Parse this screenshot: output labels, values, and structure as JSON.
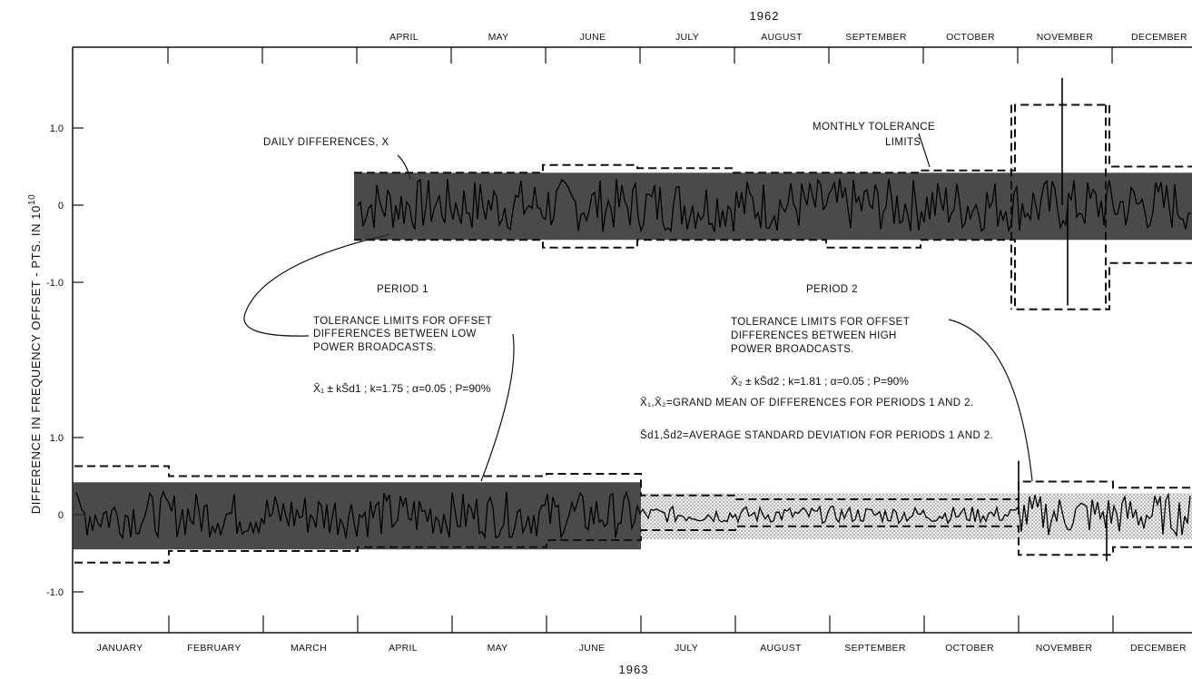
{
  "chart_data": {
    "type": "line",
    "ylabel": "DIFFERENCE IN FREQUENCY OFFSET - PTS. IN 10",
    "ylabel_exponent": "10",
    "top_year": "1962",
    "bottom_year": "1963",
    "top_months": [
      "APRIL",
      "MAY",
      "JUNE",
      "JULY",
      "AUGUST",
      "SEPTEMBER",
      "OCTOBER",
      "NOVEMBER",
      "DECEMBER"
    ],
    "bottom_months": [
      "JANUARY",
      "FEBRUARY",
      "MARCH",
      "APRIL",
      "MAY",
      "JUNE",
      "JULY",
      "AUGUST",
      "SEPTEMBER",
      "OCTOBER",
      "NOVEMBER",
      "DECEMBER"
    ],
    "y_ticks_upper": [
      "1.0",
      "0",
      "-1.0"
    ],
    "y_ticks_lower": [
      "1.0",
      "0",
      "-1.0"
    ],
    "y_tick_values": [
      1.0,
      0,
      -1.0
    ],
    "ylim": [
      -1.5,
      1.7
    ],
    "grid": false,
    "panels": [
      {
        "name": "1962",
        "start_month": 4,
        "band": {
          "low": -0.45,
          "high": 0.42
        },
        "tolerance_limits": [
          {
            "month": 4,
            "upper": 0.42,
            "lower": -0.45
          },
          {
            "month": 5,
            "upper": 0.42,
            "lower": -0.45
          },
          {
            "month": 6,
            "upper": 0.52,
            "lower": -0.55
          },
          {
            "month": 7,
            "upper": 0.48,
            "lower": -0.45
          },
          {
            "month": 8,
            "upper": 0.42,
            "lower": -0.45
          },
          {
            "month": 9,
            "upper": 0.42,
            "lower": -0.55
          },
          {
            "month": 10,
            "upper": 0.45,
            "lower": -0.45
          },
          {
            "month": 11,
            "upper": 1.3,
            "lower": -1.35
          },
          {
            "month": 12,
            "upper": 0.5,
            "lower": -0.75
          }
        ],
        "spikes": [
          {
            "x": 11.6,
            "value": 1.65
          },
          {
            "x": 11.55,
            "value": -1.3
          }
        ]
      },
      {
        "name": "1963",
        "start_month": 1,
        "band_period1": {
          "low": -0.45,
          "high": 0.42,
          "months": [
            1,
            6
          ]
        },
        "band_period2": {
          "low": -0.32,
          "high": 0.28,
          "months": [
            7,
            12
          ]
        },
        "tolerance_limits": [
          {
            "month": 1,
            "upper": 0.63,
            "lower": -0.62
          },
          {
            "month": 2,
            "upper": 0.5,
            "lower": -0.47
          },
          {
            "month": 3,
            "upper": 0.5,
            "lower": -0.47
          },
          {
            "month": 4,
            "upper": 0.5,
            "lower": -0.42
          },
          {
            "month": 5,
            "upper": 0.5,
            "lower": -0.42
          },
          {
            "month": 6,
            "upper": 0.53,
            "lower": -0.33
          },
          {
            "month": 7,
            "upper": 0.25,
            "lower": -0.2
          },
          {
            "month": 8,
            "upper": 0.2,
            "lower": -0.15
          },
          {
            "month": 9,
            "upper": 0.2,
            "lower": -0.15
          },
          {
            "month": 10,
            "upper": 0.2,
            "lower": -0.15
          },
          {
            "month": 11,
            "upper": 0.43,
            "lower": -0.52
          },
          {
            "month": 12,
            "upper": 0.35,
            "lower": -0.42
          }
        ],
        "spikes": [
          {
            "x": 11.05,
            "value": 0.7
          },
          {
            "x": 12.05,
            "value": -0.6
          }
        ]
      }
    ]
  },
  "annotations": {
    "daily_differences": "DAILY DIFFERENCES, X",
    "monthly_tolerance_1": "MONTHLY TOLERANCE",
    "monthly_tolerance_2": "LIMITS",
    "period1": "PERIOD 1",
    "period2": "PERIOD 2",
    "tol_low_1": "TOLERANCE LIMITS FOR  OFFSET",
    "tol_low_2": "DIFFERENCES BETWEEN LOW",
    "tol_low_3": "POWER BROADCASTS.",
    "formula_low": "X̄₁ ± kS̄d1 ; k=1.75 ; α=0.05 ; P=90%",
    "tol_high_1": "TOLERANCE LIMITS FOR  OFFSET",
    "tol_high_2": "DIFFERENCES BETWEEN HIGH",
    "tol_high_3": "POWER BROADCASTS.",
    "formula_high": "X̄₂ ± kS̄d2 ; k=1.81 ; α=0.05 ; P=90%",
    "def_mean": "X̄₁,X̄₂=GRAND MEAN OF DIFFERENCES FOR PERIODS 1 AND 2.",
    "def_std": "S̄d1,S̄d2=AVERAGE STANDARD DEVIATION FOR PERIODS 1 AND 2."
  }
}
